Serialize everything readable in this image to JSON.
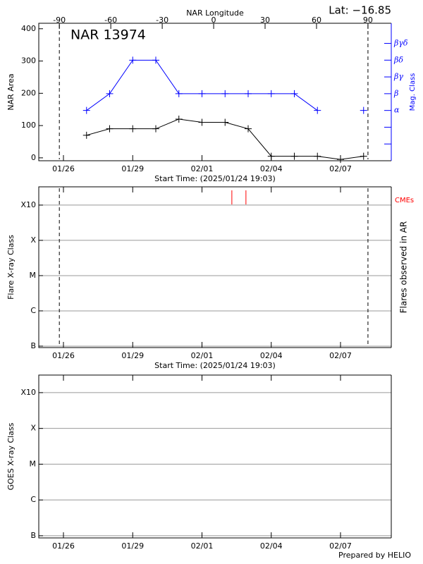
{
  "chart_data": [
    {
      "type": "line",
      "title": "NAR 13974",
      "annotation": "Lat: −16.85",
      "x2label": "NAR Longitude",
      "ylabel": "NAR Area",
      "y2label": "Mag. Class",
      "xlabel": "Start Time: (2025/01/24 19:03)",
      "x": [
        2.206,
        3.206,
        4.206,
        5.206,
        6.206,
        7.206,
        8.206,
        9.206,
        10.206,
        11.206,
        12.206,
        13.206,
        14.206
      ],
      "series": [
        {
          "color": "#000000",
          "values": [
            70,
            90,
            90,
            90,
            120,
            110,
            110,
            90,
            5,
            5,
            5,
            -5,
            5
          ]
        },
        {
          "color": "#0000ff",
          "axis": "y2",
          "values": [
            3,
            4,
            6,
            6,
            4,
            4,
            4,
            4,
            4,
            4,
            3,
            null,
            3
          ]
        }
      ],
      "xlim": [
        0.137,
        15.405
      ],
      "xticks": [
        {
          "value": 1.206,
          "label": "01/26"
        },
        {
          "value": 4.206,
          "label": "01/29"
        },
        {
          "value": 7.206,
          "label": "02/01"
        },
        {
          "value": 10.206,
          "label": "02/04"
        },
        {
          "value": 13.206,
          "label": "02/07"
        }
      ],
      "x2lim": [
        -102,
        103.6
      ],
      "x2ticks": [
        -90,
        -60,
        -30,
        0,
        30,
        60,
        90
      ],
      "dashed_x2": [
        -90,
        90
      ],
      "ylim": [
        -9,
        417
      ],
      "yticks": [
        0,
        100,
        200,
        300,
        400
      ],
      "y2lim": [
        0,
        8.2
      ],
      "y2ticks": [
        {
          "value": 3,
          "label": "α"
        },
        {
          "value": 4,
          "label": "β"
        },
        {
          "value": 5,
          "label": "βγ"
        },
        {
          "value": 6,
          "label": "βδ"
        },
        {
          "value": 7,
          "label": "βγδ"
        }
      ],
      "y2minor": [
        1,
        2
      ],
      "grid": false
    },
    {
      "type": "event",
      "ylabel": "Flare X-ray Class",
      "y2label": "Flares observed in AR",
      "xlabel": "Start Time: (2025/01/24 19:03)",
      "xlim": [
        0.137,
        15.405
      ],
      "xticks": [
        {
          "value": 1.206,
          "label": "01/26"
        },
        {
          "value": 4.206,
          "label": "01/29"
        },
        {
          "value": 7.206,
          "label": "02/01"
        },
        {
          "value": 10.206,
          "label": "02/04"
        },
        {
          "value": 13.206,
          "label": "02/07"
        }
      ],
      "x2lim": [
        -102,
        103.6
      ],
      "dashed_x2": [
        -90,
        90
      ],
      "log_y": true,
      "ylim": [
        9.1e-08,
        0.0033
      ],
      "yticks": [
        {
          "value": 1e-07,
          "label": "B"
        },
        {
          "value": 1e-06,
          "label": "C"
        },
        {
          "value": 1e-05,
          "label": "M"
        },
        {
          "value": 0.0001,
          "label": "X"
        },
        {
          "value": 0.001,
          "label": "X10"
        }
      ],
      "grid": true,
      "cmes": {
        "name": "CMEs",
        "color": "#ff0000",
        "x": [
          8.5,
          9.11
        ]
      }
    },
    {
      "type": "event",
      "ylabel": "GOES X-ray Class",
      "xlim": [
        0.137,
        15.405
      ],
      "xticks": [
        {
          "value": 1.206,
          "label": "01/26"
        },
        {
          "value": 4.206,
          "label": "01/29"
        },
        {
          "value": 7.206,
          "label": "02/01"
        },
        {
          "value": 10.206,
          "label": "02/04"
        },
        {
          "value": 13.206,
          "label": "02/07"
        }
      ],
      "log_y": true,
      "ylim": [
        8.7e-08,
        0.0031
      ],
      "yticks": [
        {
          "value": 1e-07,
          "label": "B"
        },
        {
          "value": 1e-06,
          "label": "C"
        },
        {
          "value": 1e-05,
          "label": "M"
        },
        {
          "value": 0.0001,
          "label": "X"
        },
        {
          "value": 0.001,
          "label": "X10"
        }
      ],
      "grid": true
    }
  ],
  "footer": "Prepared by HELIO"
}
